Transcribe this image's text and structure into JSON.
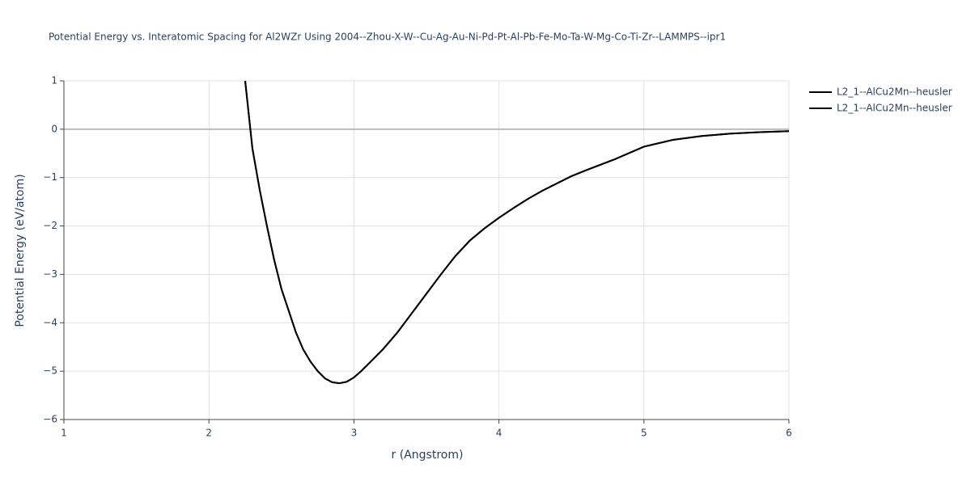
{
  "chart_data": {
    "type": "line",
    "title": "Potential Energy vs. Interatomic Spacing for Al2WZr Using 2004--Zhou-X-W--Cu-Ag-Au-Ni-Pd-Pt-Al-Pb-Fe-Mo-Ta-W-Mg-Co-Ti-Zr--LAMMPS--ipr1",
    "x_label": "r (Angstrom)",
    "y_label": "Potential Energy (eV/atom)",
    "x": [
      2.25,
      2.3,
      2.35,
      2.4,
      2.45,
      2.5,
      2.55,
      2.6,
      2.65,
      2.7,
      2.75,
      2.8,
      2.85,
      2.9,
      2.95,
      3.0,
      3.05,
      3.1,
      3.2,
      3.3,
      3.4,
      3.5,
      3.6,
      3.7,
      3.8,
      3.9,
      4.0,
      4.1,
      4.2,
      4.3,
      4.4,
      4.5,
      4.6,
      4.8,
      5.0,
      5.2,
      5.4,
      5.6,
      5.8,
      6.0
    ],
    "series": [
      {
        "name": "L2_1--AlCu2Mn--heusler",
        "color": "#000000",
        "values": [
          1.0,
          -0.4,
          -1.25,
          -2.0,
          -2.7,
          -3.3,
          -3.75,
          -4.2,
          -4.55,
          -4.8,
          -5.0,
          -5.15,
          -5.23,
          -5.25,
          -5.22,
          -5.13,
          -5.0,
          -4.85,
          -4.55,
          -4.2,
          -3.8,
          -3.4,
          -3.0,
          -2.62,
          -2.3,
          -2.05,
          -1.83,
          -1.63,
          -1.44,
          -1.27,
          -1.12,
          -0.97,
          -0.85,
          -0.62,
          -0.36,
          -0.22,
          -0.14,
          -0.09,
          -0.06,
          -0.04
        ]
      },
      {
        "name": "L2_1--AlCu2Mn--heusler",
        "color": "#000000",
        "values": [
          1.0,
          -0.4,
          -1.25,
          -2.0,
          -2.7,
          -3.3,
          -3.75,
          -4.2,
          -4.55,
          -4.8,
          -5.0,
          -5.15,
          -5.23,
          -5.25,
          -5.22,
          -5.13,
          -5.0,
          -4.85,
          -4.55,
          -4.2,
          -3.8,
          -3.4,
          -3.0,
          -2.62,
          -2.3,
          -2.05,
          -1.83,
          -1.63,
          -1.44,
          -1.27,
          -1.12,
          -0.97,
          -0.85,
          -0.62,
          -0.36,
          -0.22,
          -0.14,
          -0.09,
          -0.06,
          -0.04
        ]
      }
    ],
    "xlim": [
      1,
      6
    ],
    "xticks": [
      1,
      2,
      3,
      4,
      5,
      6
    ],
    "ylim": [
      -6,
      1
    ],
    "yticks": [
      {
        "value": -6,
        "label": "−6"
      },
      {
        "value": -5,
        "label": "−5"
      },
      {
        "value": -4,
        "label": "−4"
      },
      {
        "value": -3,
        "label": "−3"
      },
      {
        "value": -2,
        "label": "−2"
      },
      {
        "value": -1,
        "label": "−1"
      },
      0,
      1
    ],
    "grid": true,
    "legend": "top-right"
  }
}
